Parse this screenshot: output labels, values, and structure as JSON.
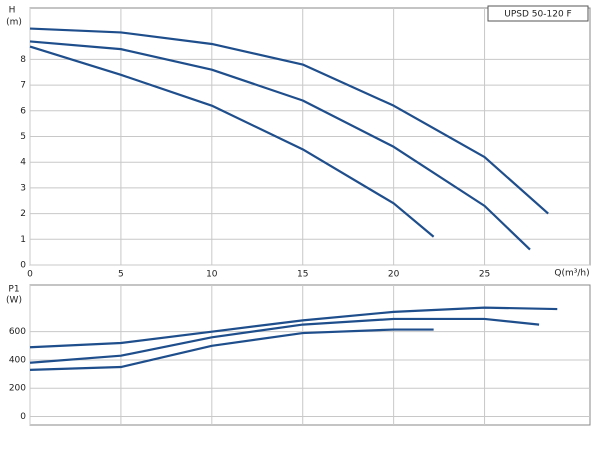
{
  "chart_data": [
    {
      "type": "line",
      "y_label_top": "H",
      "y_label_unit": "(m)",
      "x_label": "Q(m³/h)",
      "legend_box": "UPSD 50-120 F",
      "color": "#1f4e8c",
      "grid": true,
      "xlim": [
        0,
        30.8
      ],
      "xticks": [
        0,
        5,
        10,
        15,
        20,
        25
      ],
      "ylim": [
        0,
        10
      ],
      "yticks": [
        0,
        1,
        2,
        3,
        4,
        5,
        6,
        7,
        8
      ],
      "series": [
        {
          "x": [
            0,
            5,
            10,
            15,
            20,
            25,
            28.5
          ],
          "values": [
            9.2,
            9.05,
            8.6,
            7.8,
            6.2,
            4.2,
            2.0
          ]
        },
        {
          "x": [
            0,
            5,
            10,
            15,
            20,
            25,
            27.5
          ],
          "values": [
            8.7,
            8.4,
            7.6,
            6.4,
            4.6,
            2.3,
            0.6
          ]
        },
        {
          "x": [
            0,
            5,
            10,
            15,
            20,
            22.2
          ],
          "values": [
            8.5,
            7.4,
            6.2,
            4.5,
            2.4,
            1.1
          ]
        }
      ]
    },
    {
      "type": "line",
      "y_label_top": "P1",
      "y_label_unit": "(W)",
      "color": "#1f4e8c",
      "grid": true,
      "xlim": [
        0,
        30.8
      ],
      "ylim": [
        -60,
        930
      ],
      "yticks": [
        0,
        200,
        400,
        600
      ],
      "series": [
        {
          "x": [
            0,
            5,
            10,
            15,
            20,
            25,
            29
          ],
          "values": [
            490,
            520,
            600,
            680,
            740,
            770,
            760
          ]
        },
        {
          "x": [
            0,
            5,
            10,
            15,
            20,
            25,
            28
          ],
          "values": [
            380,
            430,
            560,
            650,
            690,
            690,
            650
          ]
        },
        {
          "x": [
            0,
            5,
            10,
            15,
            20,
            22.2
          ],
          "values": [
            330,
            350,
            500,
            590,
            615,
            615
          ]
        }
      ]
    }
  ]
}
